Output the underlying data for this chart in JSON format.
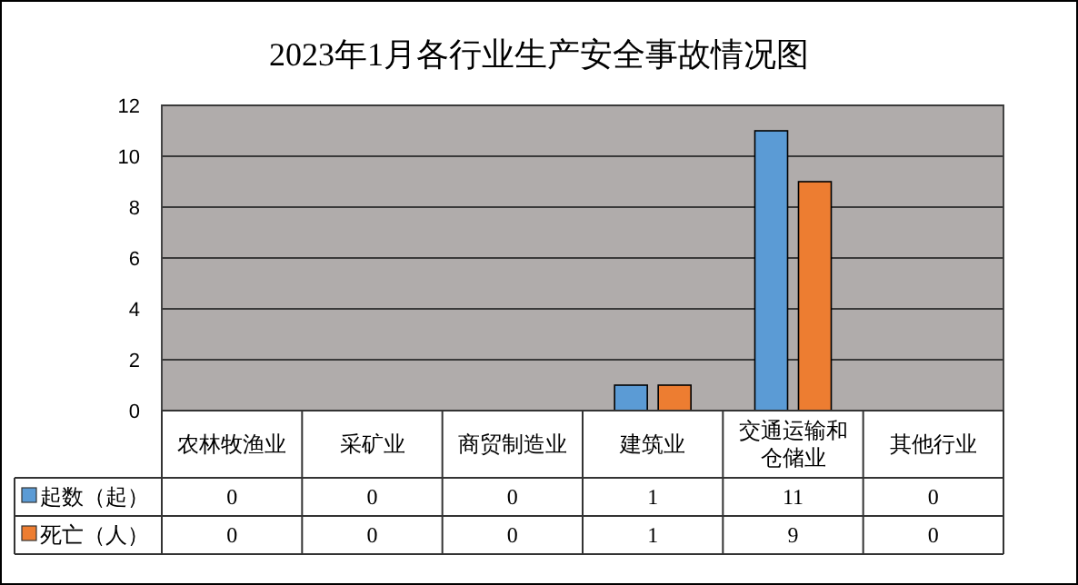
{
  "chart_data": {
    "type": "bar",
    "title": "2023年1月各行业生产安全事故情况图",
    "categories": [
      "农林牧渔业",
      "采矿业",
      "商贸制造业",
      "建筑业",
      "交通运输和仓储业",
      "其他行业"
    ],
    "series": [
      {
        "name": "起数（起）",
        "color": "#5b9bd5",
        "values": [
          0,
          0,
          0,
          1,
          11,
          0
        ]
      },
      {
        "name": "死亡（人）",
        "color": "#ed7d31",
        "values": [
          0,
          0,
          0,
          1,
          9,
          0
        ]
      }
    ],
    "ylim": [
      0,
      12
    ],
    "yticks": [
      0,
      2,
      4,
      6,
      8,
      10,
      12
    ],
    "grid": "y",
    "legend": "bottom left",
    "data_labels": true
  }
}
